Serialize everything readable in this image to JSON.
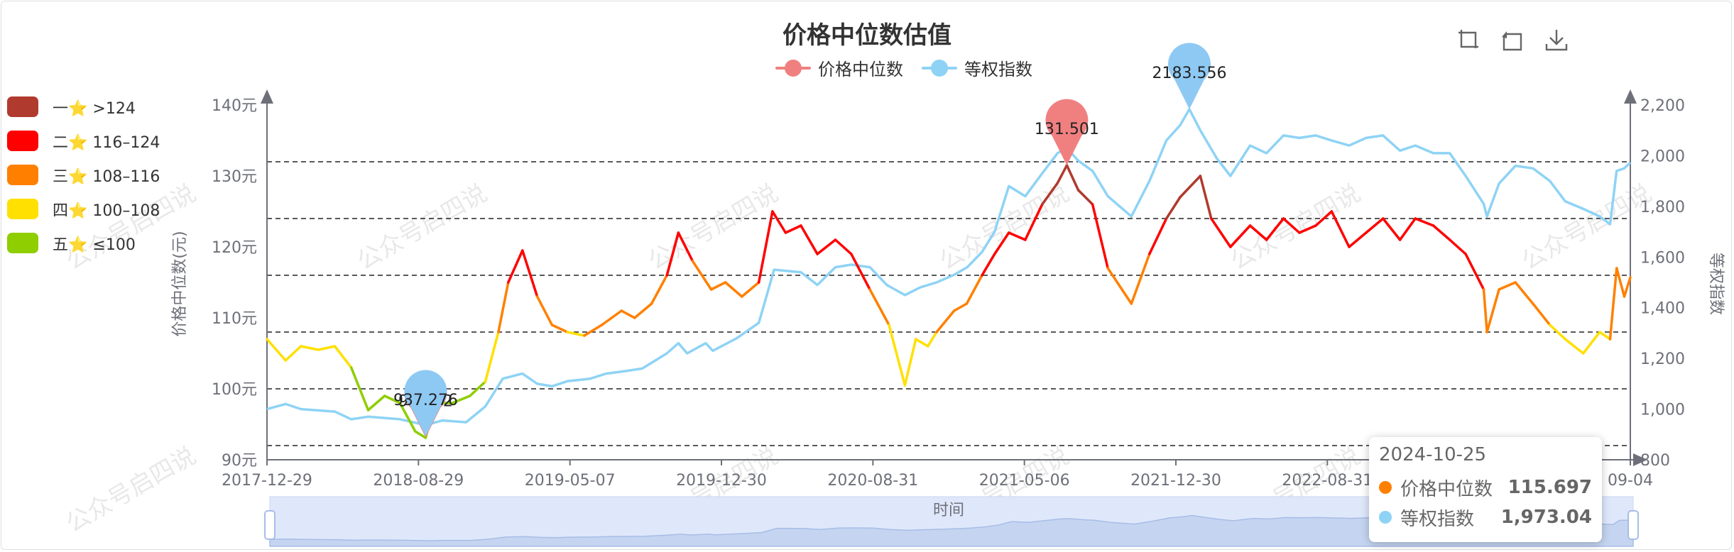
{
  "chart_data": {
    "type": "line",
    "title": "价格中位数估值",
    "legend": [
      "价格中位数",
      "等权指数"
    ],
    "legend_position": "top-center",
    "colors": {
      "median": "#e06666",
      "index": "#8ed3f5"
    },
    "x_ticks": [
      "2017-12-29",
      "2018-08-29",
      "2019-05-07",
      "2019-12-30",
      "2020-08-31",
      "2021-05-06",
      "2021-12-30",
      "2022-08-31",
      "2023-05-",
      "09-04"
    ],
    "x_axis_name": "时间",
    "y_left": {
      "name": "价格中位数(元)",
      "range": [
        90,
        140
      ],
      "ticks": [
        "90元",
        "100元",
        "110元",
        "120元",
        "130元",
        "140元"
      ]
    },
    "y_right": {
      "name": "等权指数",
      "range": [
        800,
        2200
      ],
      "ticks": [
        "800",
        "1,000",
        "1,200",
        "1,400",
        "1,600",
        "1,800",
        "2,000",
        "2,200"
      ]
    },
    "threshold_lines": [
      92,
      100,
      108,
      116,
      124,
      132
    ],
    "x_range": [
      "2017-12-29",
      "2024-10-25"
    ],
    "series": [
      {
        "name": "价格中位数",
        "axis": "left",
        "points": [
          [
            "2017-12-29",
            107
          ],
          [
            "2018-02-01",
            104
          ],
          [
            "2018-03-01",
            106
          ],
          [
            "2018-04-02",
            105.5
          ],
          [
            "2018-05-02",
            106
          ],
          [
            "2018-06-01",
            103
          ],
          [
            "2018-07-02",
            97
          ],
          [
            "2018-08-01",
            99
          ],
          [
            "2018-08-29",
            98
          ],
          [
            "2018-09-26",
            94
          ],
          [
            "2018-10-15",
            93.1
          ],
          [
            "2018-11-01",
            98
          ],
          [
            "2018-12-03",
            98
          ],
          [
            "2019-01-04",
            99
          ],
          [
            "2019-02-01",
            101
          ],
          [
            "2019-02-25",
            108
          ],
          [
            "2019-03-15",
            115
          ],
          [
            "2019-04-10",
            119.5
          ],
          [
            "2019-05-07",
            113
          ],
          [
            "2019-06-03",
            109
          ],
          [
            "2019-07-01",
            108
          ],
          [
            "2019-08-01",
            107.5
          ],
          [
            "2019-09-02",
            109
          ],
          [
            "2019-10-08",
            111
          ],
          [
            "2019-11-01",
            110
          ],
          [
            "2019-12-02",
            112
          ],
          [
            "2019-12-30",
            116
          ],
          [
            "2020-01-20",
            122
          ],
          [
            "2020-02-15",
            118
          ],
          [
            "2020-03-20",
            114
          ],
          [
            "2020-04-15",
            115
          ],
          [
            "2020-05-15",
            113
          ],
          [
            "2020-06-15",
            115
          ],
          [
            "2020-07-10",
            125
          ],
          [
            "2020-08-03",
            122
          ],
          [
            "2020-08-31",
            123
          ],
          [
            "2020-09-30",
            119
          ],
          [
            "2020-11-02",
            121
          ],
          [
            "2020-12-01",
            119
          ],
          [
            "2021-01-04",
            114
          ],
          [
            "2021-02-08",
            109
          ],
          [
            "2021-03-09",
            100.5
          ],
          [
            "2021-03-29",
            107
          ],
          [
            "2021-04-20",
            106
          ],
          [
            "2021-05-06",
            108
          ],
          [
            "2021-06-07",
            111
          ],
          [
            "2021-06-30",
            112
          ],
          [
            "2021-07-28",
            116
          ],
          [
            "2021-08-20",
            119
          ],
          [
            "2021-09-15",
            122
          ],
          [
            "2021-10-15",
            121
          ],
          [
            "2021-11-15",
            126
          ],
          [
            "2021-12-13",
            129
          ],
          [
            "2021-12-30",
            131.5
          ],
          [
            "2022-01-20",
            128
          ],
          [
            "2022-02-15",
            126
          ],
          [
            "2022-03-15",
            117
          ],
          [
            "2022-04-27",
            112
          ],
          [
            "2022-05-30",
            119
          ],
          [
            "2022-06-30",
            124
          ],
          [
            "2022-07-25",
            127
          ],
          [
            "2022-08-31",
            130
          ],
          [
            "2022-09-20",
            124
          ],
          [
            "2022-10-25",
            120
          ],
          [
            "2022-11-30",
            123
          ],
          [
            "2022-12-30",
            121
          ],
          [
            "2023-01-30",
            124
          ],
          [
            "2023-02-28",
            122
          ],
          [
            "2023-03-30",
            123
          ],
          [
            "2023-04-28",
            125
          ],
          [
            "2023-05-30",
            120
          ],
          [
            "2023-06-30",
            122
          ],
          [
            "2023-07-31",
            124
          ],
          [
            "2023-08-31",
            121
          ],
          [
            "2023-09-28",
            124
          ],
          [
            "2023-10-31",
            123
          ],
          [
            "2023-11-30",
            121
          ],
          [
            "2023-12-29",
            119
          ],
          [
            "2024-01-31",
            114
          ],
          [
            "2024-02-06",
            108
          ],
          [
            "2024-02-28",
            114
          ],
          [
            "2024-03-29",
            115
          ],
          [
            "2024-04-30",
            112
          ],
          [
            "2024-05-31",
            109
          ],
          [
            "2024-06-28",
            107
          ],
          [
            "2024-07-31",
            105
          ],
          [
            "2024-08-30",
            108
          ],
          [
            "2024-09-18",
            107
          ],
          [
            "2024-09-30",
            117
          ],
          [
            "2024-10-14",
            113
          ],
          [
            "2024-10-25",
            115.697
          ]
        ],
        "markpoint_max": {
          "date": "2021-12-30",
          "value": 131.501,
          "label": "131.501"
        },
        "markpoint_min": {
          "date": "2018-10-15",
          "value": 93.132,
          "label": "93.132"
        }
      },
      {
        "name": "等权指数",
        "axis": "right",
        "points": [
          [
            "2017-12-29",
            1000
          ],
          [
            "2018-02-01",
            1020
          ],
          [
            "2018-03-01",
            1000
          ],
          [
            "2018-05-02",
            990
          ],
          [
            "2018-06-01",
            960
          ],
          [
            "2018-07-02",
            970
          ],
          [
            "2018-08-29",
            960
          ],
          [
            "2018-10-15",
            937.276
          ],
          [
            "2018-11-15",
            955
          ],
          [
            "2018-12-28",
            948
          ],
          [
            "2019-02-01",
            1010
          ],
          [
            "2019-03-05",
            1120
          ],
          [
            "2019-04-10",
            1140
          ],
          [
            "2019-05-07",
            1100
          ],
          [
            "2019-06-03",
            1090
          ],
          [
            "2019-07-01",
            1110
          ],
          [
            "2019-08-12",
            1120
          ],
          [
            "2019-09-10",
            1140
          ],
          [
            "2019-10-15",
            1150
          ],
          [
            "2019-11-15",
            1160
          ],
          [
            "2019-12-30",
            1220
          ],
          [
            "2020-01-20",
            1260
          ],
          [
            "2020-02-05",
            1220
          ],
          [
            "2020-03-10",
            1260
          ],
          [
            "2020-03-23",
            1230
          ],
          [
            "2020-05-06",
            1280
          ],
          [
            "2020-06-15",
            1340
          ],
          [
            "2020-07-13",
            1550
          ],
          [
            "2020-08-31",
            1540
          ],
          [
            "2020-09-30",
            1490
          ],
          [
            "2020-11-02",
            1560
          ],
          [
            "2020-12-01",
            1570
          ],
          [
            "2021-01-04",
            1560
          ],
          [
            "2021-02-04",
            1490
          ],
          [
            "2021-03-09",
            1450
          ],
          [
            "2021-04-06",
            1480
          ],
          [
            "2021-05-06",
            1500
          ],
          [
            "2021-06-07",
            1530
          ],
          [
            "2021-07-01",
            1560
          ],
          [
            "2021-07-28",
            1620
          ],
          [
            "2021-08-20",
            1700
          ],
          [
            "2021-09-15",
            1880
          ],
          [
            "2021-10-15",
            1840
          ],
          [
            "2021-11-15",
            1930
          ],
          [
            "2021-12-13",
            2010
          ],
          [
            "2021-12-30",
            2030
          ],
          [
            "2022-01-20",
            1980
          ],
          [
            "2022-02-15",
            1940
          ],
          [
            "2022-03-15",
            1840
          ],
          [
            "2022-04-27",
            1760
          ],
          [
            "2022-05-30",
            1900
          ],
          [
            "2022-06-30",
            2060
          ],
          [
            "2022-07-25",
            2120
          ],
          [
            "2022-08-11",
            2183.556
          ],
          [
            "2022-08-31",
            2100
          ],
          [
            "2022-09-30",
            1990
          ],
          [
            "2022-10-25",
            1920
          ],
          [
            "2022-11-30",
            2040
          ],
          [
            "2022-12-30",
            2010
          ],
          [
            "2023-01-30",
            2080
          ],
          [
            "2023-02-28",
            2070
          ],
          [
            "2023-03-30",
            2080
          ],
          [
            "2023-04-28",
            2060
          ],
          [
            "2023-05-30",
            2040
          ],
          [
            "2023-06-30",
            2070
          ],
          [
            "2023-07-31",
            2080
          ],
          [
            "2023-08-31",
            2020
          ],
          [
            "2023-09-28",
            2040
          ],
          [
            "2023-10-31",
            2010
          ],
          [
            "2023-11-30",
            2010
          ],
          [
            "2023-12-29",
            1920
          ],
          [
            "2024-01-31",
            1810
          ],
          [
            "2024-02-06",
            1760
          ],
          [
            "2024-02-28",
            1890
          ],
          [
            "2024-03-29",
            1960
          ],
          [
            "2024-04-30",
            1950
          ],
          [
            "2024-05-31",
            1900
          ],
          [
            "2024-06-28",
            1820
          ],
          [
            "2024-07-31",
            1790
          ],
          [
            "2024-08-30",
            1760
          ],
          [
            "2024-09-18",
            1730
          ],
          [
            "2024-09-30",
            1940
          ],
          [
            "2024-10-14",
            1950
          ],
          [
            "2024-10-25",
            1973.04
          ]
        ],
        "markpoint_max": {
          "date": "2022-08-11",
          "value": 2183.556,
          "label": "2183.556"
        },
        "markpoint_min": {
          "date": "2018-10-15",
          "value": 937.276,
          "label": "937.276"
        }
      }
    ]
  },
  "visual_map": [
    {
      "label": "一⭐ >124",
      "color": "#b03a2e",
      "min": 124,
      "max": 999
    },
    {
      "label": "二⭐ 116–124",
      "color": "#ff0000",
      "min": 116,
      "max": 124
    },
    {
      "label": "三⭐ 108–116",
      "color": "#ff8000",
      "min": 108,
      "max": 116
    },
    {
      "label": "四⭐ 100–108",
      "color": "#ffe000",
      "min": 100,
      "max": 108
    },
    {
      "label": "五⭐ ≤100",
      "color": "#8fce00",
      "min": 0,
      "max": 100
    }
  ],
  "toolbox": {
    "icons": [
      "zoom-icon",
      "reset-icon",
      "download-icon"
    ]
  },
  "tooltip": {
    "date": "2024-10-25",
    "rows": [
      {
        "name": "价格中位数",
        "value": "115.697",
        "color": "#ff8000"
      },
      {
        "name": "等权指数",
        "value": "1,973.04",
        "color": "#8ed3f5"
      }
    ]
  },
  "watermark": "公众号启四说",
  "datazoom": {
    "label": "时间"
  }
}
